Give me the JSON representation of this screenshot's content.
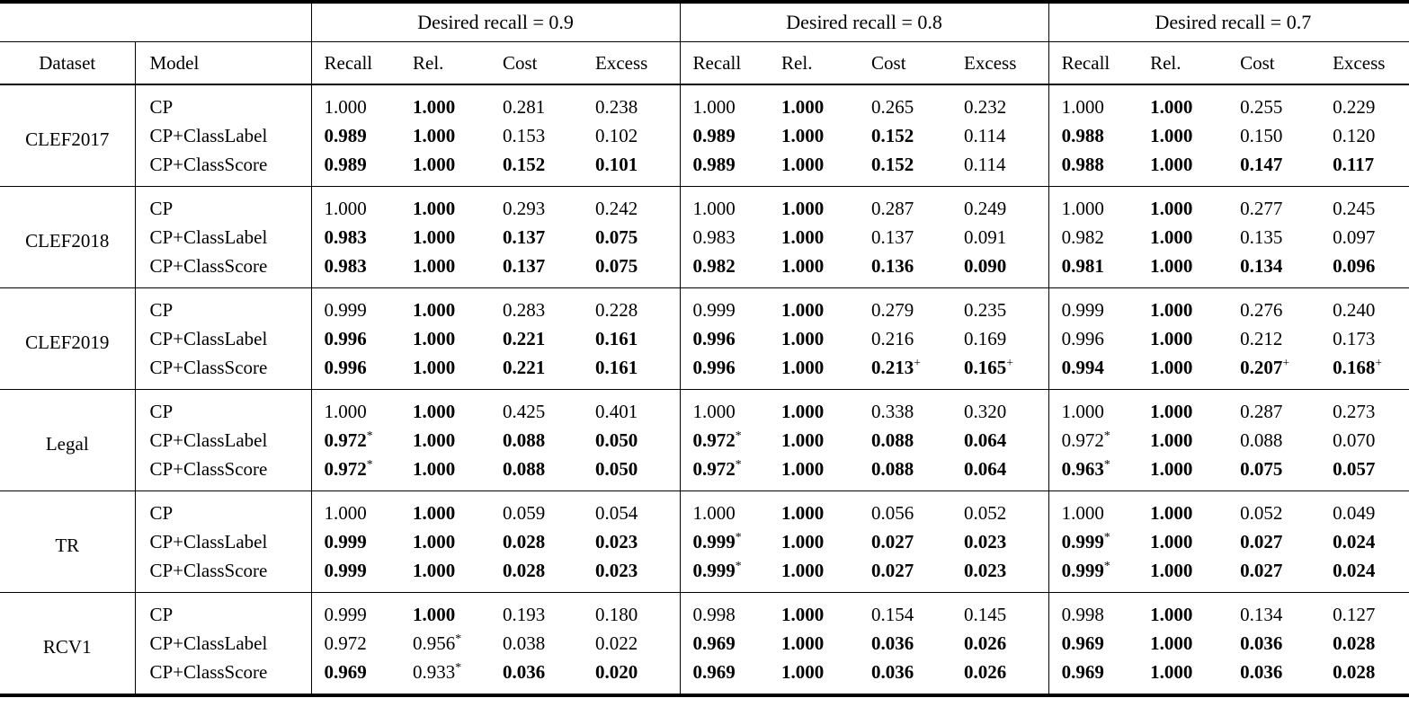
{
  "table": {
    "group_headers": [
      "Desired recall = 0.9",
      "Desired recall = 0.8",
      "Desired recall = 0.7"
    ],
    "col_headers": {
      "dataset": "Dataset",
      "model": "Model",
      "metrics": [
        "Recall",
        "Rel.",
        "Cost",
        "Excess"
      ]
    },
    "rows": [
      {
        "dataset": "CLEF2017",
        "models": [
          {
            "model": "CP",
            "cells": [
              [
                "1.000",
                0
              ],
              [
                "1.000",
                1
              ],
              [
                "0.281",
                0
              ],
              [
                "0.238",
                0
              ],
              [
                "1.000",
                0
              ],
              [
                "1.000",
                1
              ],
              [
                "0.265",
                0
              ],
              [
                "0.232",
                0
              ],
              [
                "1.000",
                0
              ],
              [
                "1.000",
                1
              ],
              [
                "0.255",
                0
              ],
              [
                "0.229",
                0
              ]
            ]
          },
          {
            "model": "CP+ClassLabel",
            "cells": [
              [
                "0.989",
                1
              ],
              [
                "1.000",
                1
              ],
              [
                "0.153",
                0
              ],
              [
                "0.102",
                0
              ],
              [
                "0.989",
                1
              ],
              [
                "1.000",
                1
              ],
              [
                "0.152",
                1
              ],
              [
                "0.114",
                0
              ],
              [
                "0.988",
                1
              ],
              [
                "1.000",
                1
              ],
              [
                "0.150",
                0
              ],
              [
                "0.120",
                0
              ]
            ]
          },
          {
            "model": "CP+ClassScore",
            "cells": [
              [
                "0.989",
                1
              ],
              [
                "1.000",
                1
              ],
              [
                "0.152",
                1
              ],
              [
                "0.101",
                1
              ],
              [
                "0.989",
                1
              ],
              [
                "1.000",
                1
              ],
              [
                "0.152",
                1
              ],
              [
                "0.114",
                0
              ],
              [
                "0.988",
                1
              ],
              [
                "1.000",
                1
              ],
              [
                "0.147",
                1
              ],
              [
                "0.117",
                1
              ]
            ]
          }
        ]
      },
      {
        "dataset": "CLEF2018",
        "models": [
          {
            "model": "CP",
            "cells": [
              [
                "1.000",
                0
              ],
              [
                "1.000",
                1
              ],
              [
                "0.293",
                0
              ],
              [
                "0.242",
                0
              ],
              [
                "1.000",
                0
              ],
              [
                "1.000",
                1
              ],
              [
                "0.287",
                0
              ],
              [
                "0.249",
                0
              ],
              [
                "1.000",
                0
              ],
              [
                "1.000",
                1
              ],
              [
                "0.277",
                0
              ],
              [
                "0.245",
                0
              ]
            ]
          },
          {
            "model": "CP+ClassLabel",
            "cells": [
              [
                "0.983",
                1
              ],
              [
                "1.000",
                1
              ],
              [
                "0.137",
                1
              ],
              [
                "0.075",
                1
              ],
              [
                "0.983",
                0
              ],
              [
                "1.000",
                1
              ],
              [
                "0.137",
                0
              ],
              [
                "0.091",
                0
              ],
              [
                "0.982",
                0
              ],
              [
                "1.000",
                1
              ],
              [
                "0.135",
                0
              ],
              [
                "0.097",
                0
              ]
            ]
          },
          {
            "model": "CP+ClassScore",
            "cells": [
              [
                "0.983",
                1
              ],
              [
                "1.000",
                1
              ],
              [
                "0.137",
                1
              ],
              [
                "0.075",
                1
              ],
              [
                "0.982",
                1
              ],
              [
                "1.000",
                1
              ],
              [
                "0.136",
                1
              ],
              [
                "0.090",
                1
              ],
              [
                "0.981",
                1
              ],
              [
                "1.000",
                1
              ],
              [
                "0.134",
                1
              ],
              [
                "0.096",
                1
              ]
            ]
          }
        ]
      },
      {
        "dataset": "CLEF2019",
        "models": [
          {
            "model": "CP",
            "cells": [
              [
                "0.999",
                0
              ],
              [
                "1.000",
                1
              ],
              [
                "0.283",
                0
              ],
              [
                "0.228",
                0
              ],
              [
                "0.999",
                0
              ],
              [
                "1.000",
                1
              ],
              [
                "0.279",
                0
              ],
              [
                "0.235",
                0
              ],
              [
                "0.999",
                0
              ],
              [
                "1.000",
                1
              ],
              [
                "0.276",
                0
              ],
              [
                "0.240",
                0
              ]
            ]
          },
          {
            "model": "CP+ClassLabel",
            "cells": [
              [
                "0.996",
                1
              ],
              [
                "1.000",
                1
              ],
              [
                "0.221",
                1
              ],
              [
                "0.161",
                1
              ],
              [
                "0.996",
                1
              ],
              [
                "1.000",
                1
              ],
              [
                "0.216",
                0
              ],
              [
                "0.169",
                0
              ],
              [
                "0.996",
                0
              ],
              [
                "1.000",
                1
              ],
              [
                "0.212",
                0
              ],
              [
                "0.173",
                0
              ]
            ]
          },
          {
            "model": "CP+ClassScore",
            "cells": [
              [
                "0.996",
                1
              ],
              [
                "1.000",
                1
              ],
              [
                "0.221",
                1
              ],
              [
                "0.161",
                1
              ],
              [
                "0.996",
                1
              ],
              [
                "1.000",
                1
              ],
              [
                "0.213",
                1,
                "+"
              ],
              [
                "0.165",
                1,
                "+"
              ],
              [
                "0.994",
                1
              ],
              [
                "1.000",
                1
              ],
              [
                "0.207",
                1,
                "+"
              ],
              [
                "0.168",
                1,
                "+"
              ]
            ]
          }
        ]
      },
      {
        "dataset": "Legal",
        "models": [
          {
            "model": "CP",
            "cells": [
              [
                "1.000",
                0
              ],
              [
                "1.000",
                1
              ],
              [
                "0.425",
                0
              ],
              [
                "0.401",
                0
              ],
              [
                "1.000",
                0
              ],
              [
                "1.000",
                1
              ],
              [
                "0.338",
                0
              ],
              [
                "0.320",
                0
              ],
              [
                "1.000",
                0
              ],
              [
                "1.000",
                1
              ],
              [
                "0.287",
                0
              ],
              [
                "0.273",
                0
              ]
            ]
          },
          {
            "model": "CP+ClassLabel",
            "cells": [
              [
                "0.972",
                1,
                "*"
              ],
              [
                "1.000",
                1
              ],
              [
                "0.088",
                1
              ],
              [
                "0.050",
                1
              ],
              [
                "0.972",
                1,
                "*"
              ],
              [
                "1.000",
                1
              ],
              [
                "0.088",
                1
              ],
              [
                "0.064",
                1
              ],
              [
                "0.972",
                0,
                "*"
              ],
              [
                "1.000",
                1
              ],
              [
                "0.088",
                0
              ],
              [
                "0.070",
                0
              ]
            ]
          },
          {
            "model": "CP+ClassScore",
            "cells": [
              [
                "0.972",
                1,
                "*"
              ],
              [
                "1.000",
                1
              ],
              [
                "0.088",
                1
              ],
              [
                "0.050",
                1
              ],
              [
                "0.972",
                1,
                "*"
              ],
              [
                "1.000",
                1
              ],
              [
                "0.088",
                1
              ],
              [
                "0.064",
                1
              ],
              [
                "0.963",
                1,
                "*"
              ],
              [
                "1.000",
                1
              ],
              [
                "0.075",
                1
              ],
              [
                "0.057",
                1
              ]
            ]
          }
        ]
      },
      {
        "dataset": "TR",
        "models": [
          {
            "model": "CP",
            "cells": [
              [
                "1.000",
                0
              ],
              [
                "1.000",
                1
              ],
              [
                "0.059",
                0
              ],
              [
                "0.054",
                0
              ],
              [
                "1.000",
                0
              ],
              [
                "1.000",
                1
              ],
              [
                "0.056",
                0
              ],
              [
                "0.052",
                0
              ],
              [
                "1.000",
                0
              ],
              [
                "1.000",
                1
              ],
              [
                "0.052",
                0
              ],
              [
                "0.049",
                0
              ]
            ]
          },
          {
            "model": "CP+ClassLabel",
            "cells": [
              [
                "0.999",
                1
              ],
              [
                "1.000",
                1
              ],
              [
                "0.028",
                1
              ],
              [
                "0.023",
                1
              ],
              [
                "0.999",
                1,
                "*"
              ],
              [
                "1.000",
                1
              ],
              [
                "0.027",
                1
              ],
              [
                "0.023",
                1
              ],
              [
                "0.999",
                1,
                "*"
              ],
              [
                "1.000",
                1
              ],
              [
                "0.027",
                1
              ],
              [
                "0.024",
                1
              ]
            ]
          },
          {
            "model": "CP+ClassScore",
            "cells": [
              [
                "0.999",
                1
              ],
              [
                "1.000",
                1
              ],
              [
                "0.028",
                1
              ],
              [
                "0.023",
                1
              ],
              [
                "0.999",
                1,
                "*"
              ],
              [
                "1.000",
                1
              ],
              [
                "0.027",
                1
              ],
              [
                "0.023",
                1
              ],
              [
                "0.999",
                1,
                "*"
              ],
              [
                "1.000",
                1
              ],
              [
                "0.027",
                1
              ],
              [
                "0.024",
                1
              ]
            ]
          }
        ]
      },
      {
        "dataset": "RCV1",
        "models": [
          {
            "model": "CP",
            "cells": [
              [
                "0.999",
                0
              ],
              [
                "1.000",
                1
              ],
              [
                "0.193",
                0
              ],
              [
                "0.180",
                0
              ],
              [
                "0.998",
                0
              ],
              [
                "1.000",
                1
              ],
              [
                "0.154",
                0
              ],
              [
                "0.145",
                0
              ],
              [
                "0.998",
                0
              ],
              [
                "1.000",
                1
              ],
              [
                "0.134",
                0
              ],
              [
                "0.127",
                0
              ]
            ]
          },
          {
            "model": "CP+ClassLabel",
            "cells": [
              [
                "0.972",
                0
              ],
              [
                "0.956",
                0,
                "*"
              ],
              [
                "0.038",
                0
              ],
              [
                "0.022",
                0
              ],
              [
                "0.969",
                1
              ],
              [
                "1.000",
                1
              ],
              [
                "0.036",
                1
              ],
              [
                "0.026",
                1
              ],
              [
                "0.969",
                1
              ],
              [
                "1.000",
                1
              ],
              [
                "0.036",
                1
              ],
              [
                "0.028",
                1
              ]
            ]
          },
          {
            "model": "CP+ClassScore",
            "cells": [
              [
                "0.969",
                1
              ],
              [
                "0.933",
                0,
                "*"
              ],
              [
                "0.036",
                1
              ],
              [
                "0.020",
                1
              ],
              [
                "0.969",
                1
              ],
              [
                "1.000",
                1
              ],
              [
                "0.036",
                1
              ],
              [
                "0.026",
                1
              ],
              [
                "0.969",
                1
              ],
              [
                "1.000",
                1
              ],
              [
                "0.036",
                1
              ],
              [
                "0.028",
                1
              ]
            ]
          }
        ]
      }
    ]
  }
}
